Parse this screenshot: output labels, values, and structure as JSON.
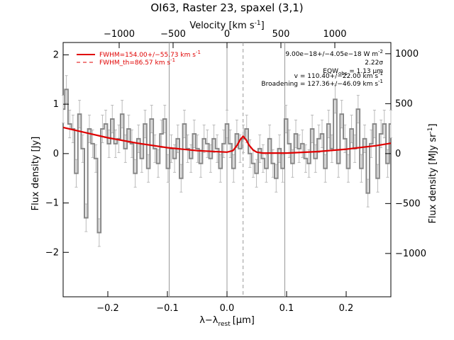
{
  "chart_data": {
    "type": "line",
    "title": "OI63, Raster 23, spaxel (3,1)",
    "xlabel": "λ−λ",
    "xlabel_sub": "rest",
    "xlabel_unit": "[μm]",
    "ylabel": "Flux density [Jy]",
    "ylabel_right": "Flux density [MJy sr",
    "ylabel_right_sup": "-1",
    "ylabel_right_close": "]",
    "top_axis_label": "Velocity [km s",
    "top_axis_label_sup": "-1",
    "top_axis_label_close": "]",
    "xlim": [
      -0.275,
      0.275
    ],
    "ylim": [
      -2.9,
      2.25
    ],
    "x_ticks": [
      -0.2,
      -0.1,
      0.0,
      0.1,
      0.2
    ],
    "x_tick_labels": [
      "−0.2",
      "−0.1",
      "0.0",
      "0.1",
      "0.2"
    ],
    "y_ticks": [
      -2,
      -1,
      0,
      1,
      2
    ],
    "y_tick_labels": [
      "−2",
      "−1",
      "0",
      "1",
      "2"
    ],
    "top_ticks": [
      -1000,
      -500,
      0,
      500,
      1000
    ],
    "top_tick_labels": [
      "−1000",
      "−500",
      "0",
      "500",
      "1000"
    ],
    "right_ticks": [
      -1000,
      -500,
      0,
      500,
      1000
    ],
    "right_tick_labels": [
      "−1000",
      "−500",
      "0",
      "500",
      "1000"
    ],
    "vertical_lines": [
      -0.097,
      0.0,
      0.097
    ],
    "dashed_line_x": 0.027,
    "legend": [
      {
        "label": "FWHM=154.00+/−55.73 km s",
        "sup": "-1",
        "style": "solid",
        "color": "#e00000"
      },
      {
        "label": "FWHM_th=86.57 km s",
        "sup": "-1",
        "style": "dashed",
        "color": "#e00000"
      }
    ],
    "annotations": [
      {
        "text": "9.00e−18+/−4.05e−18 W m",
        "sup": "-2"
      },
      {
        "text": "2.22σ",
        "sup": ""
      },
      {
        "text": "EQW",
        "sub": "obs",
        "tail": " = 1.13 μm"
      },
      {
        "text": "v = 110.40+/−22.00 km s",
        "sup": "-1"
      },
      {
        "text": "Broadening = 127.36+/−46.09 km s",
        "sup": "-1"
      }
    ],
    "series": [
      {
        "style": "step",
        "color": "#888888",
        "x": [
          -0.275,
          -0.2695,
          -0.264,
          -0.2585,
          -0.253,
          -0.2475,
          -0.242,
          -0.2365,
          -0.231,
          -0.2255,
          -0.22,
          -0.2145,
          -0.209,
          -0.2035,
          -0.198,
          -0.1925,
          -0.187,
          -0.1815,
          -0.176,
          -0.1705,
          -0.165,
          -0.1595,
          -0.154,
          -0.1485,
          -0.143,
          -0.1375,
          -0.132,
          -0.1265,
          -0.121,
          -0.1155,
          -0.11,
          -0.1045,
          -0.099,
          -0.0935,
          -0.088,
          -0.0825,
          -0.077,
          -0.0715,
          -0.066,
          -0.0605,
          -0.055,
          -0.0495,
          -0.044,
          -0.0385,
          -0.033,
          -0.0275,
          -0.022,
          -0.0165,
          -0.011,
          -0.0055,
          0.0,
          0.0055,
          0.011,
          0.0165,
          0.022,
          0.0275,
          0.033,
          0.0385,
          0.044,
          0.0495,
          0.055,
          0.0605,
          0.066,
          0.0715,
          0.077,
          0.0825,
          0.088,
          0.0935,
          0.099,
          0.1045,
          0.11,
          0.1155,
          0.121,
          0.1265,
          0.132,
          0.1375,
          0.143,
          0.1485,
          0.154,
          0.1595,
          0.165,
          0.1705,
          0.176,
          0.1815,
          0.187,
          0.1925,
          0.198,
          0.2035,
          0.209,
          0.2145,
          0.22,
          0.2255,
          0.231,
          0.2365,
          0.242,
          0.2475,
          0.253,
          0.2585,
          0.264,
          0.2695,
          0.275
        ],
        "y": [
          0.9,
          1.3,
          0.6,
          0.5,
          -0.4,
          0.8,
          0.1,
          -1.3,
          0.5,
          0.2,
          -0.1,
          -1.6,
          0.5,
          0.6,
          0.2,
          0.7,
          0.2,
          0.3,
          0.8,
          0.1,
          0.5,
          0.2,
          -0.4,
          0.3,
          -0.1,
          0.6,
          -0.3,
          0.7,
          0.1,
          -0.2,
          0.4,
          0.7,
          -0.3,
          0.1,
          -0.1,
          0.3,
          -0.5,
          0.6,
          0.1,
          -0.1,
          0.4,
          0.1,
          -0.2,
          0.3,
          0.2,
          -0.1,
          0.3,
          0.1,
          -0.3,
          0.2,
          0.6,
          0.2,
          -0.3,
          0.4,
          0.1,
          0.3,
          0.5,
          0.0,
          -0.2,
          -0.4,
          0.1,
          -0.1,
          -0.3,
          0.3,
          -0.2,
          -0.5,
          0.1,
          -0.3,
          0.7,
          0.2,
          -0.2,
          0.4,
          0.1,
          0.2,
          -0.1,
          -0.2,
          0.5,
          -0.1,
          0.3,
          0.4,
          -0.3,
          0.6,
          0.1,
          1.1,
          -0.2,
          0.8,
          0.3,
          -0.3,
          0.5,
          0.1,
          0.9,
          -0.3,
          0.3,
          -0.8,
          0.2,
          0.6,
          -0.5,
          0.4,
          0.6,
          -0.2,
          0.6
        ],
        "err": 0.28
      },
      {
        "style": "line",
        "color": "#e00000",
        "x": [
          -0.275,
          -0.25,
          -0.2,
          -0.15,
          -0.1,
          -0.05,
          0.0,
          0.01,
          0.017,
          0.022,
          0.027,
          0.032,
          0.037,
          0.044,
          0.05,
          0.06,
          0.1,
          0.15,
          0.2,
          0.25,
          0.275
        ],
        "y": [
          0.53,
          0.46,
          0.32,
          0.21,
          0.12,
          0.06,
          0.03,
          0.06,
          0.17,
          0.28,
          0.35,
          0.28,
          0.17,
          0.07,
          0.03,
          0.01,
          0.01,
          0.04,
          0.09,
          0.16,
          0.21
        ]
      }
    ]
  }
}
